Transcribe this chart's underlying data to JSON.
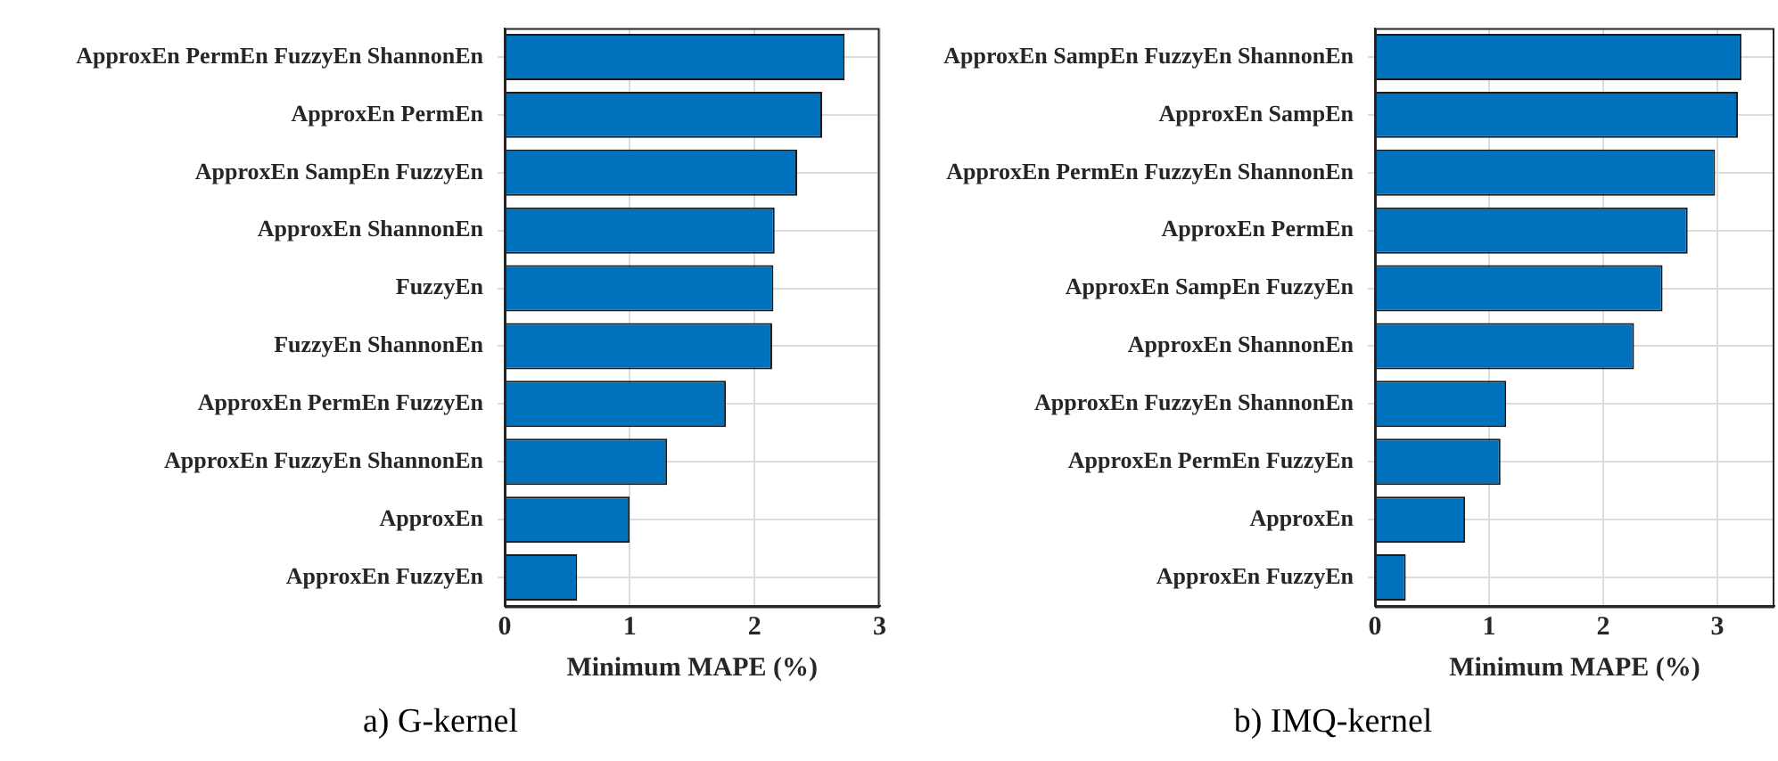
{
  "chart_data": [
    {
      "type": "bar",
      "orientation": "horizontal",
      "title": "a) G-kernel",
      "xlabel": "Minimum MAPE (%)",
      "categories": [
        "ApproxEn PermEn FuzzyEn ShannonEn",
        "ApproxEn PermEn",
        "ApproxEn SampEn FuzzyEn",
        "ApproxEn ShannonEn",
        "FuzzyEn",
        "FuzzyEn ShannonEn",
        "ApproxEn PermEn FuzzyEn",
        "ApproxEn FuzzyEn ShannonEn",
        "ApproxEn",
        "ApproxEn FuzzyEn"
      ],
      "values": [
        2.72,
        2.54,
        2.34,
        2.16,
        2.15,
        2.14,
        1.77,
        1.3,
        1.0,
        0.58
      ],
      "color": "#0072bd",
      "xlim": [
        0,
        3
      ],
      "xticks": [
        0,
        1,
        2,
        3
      ],
      "grid": true
    },
    {
      "type": "bar",
      "orientation": "horizontal",
      "title": "b) IMQ-kernel",
      "xlabel": "Minimum MAPE (%)",
      "categories": [
        "ApproxEn SampEn FuzzyEn ShannonEn",
        "ApproxEn SampEn",
        "ApproxEn PermEn FuzzyEn ShannonEn",
        "ApproxEn PermEn",
        "ApproxEn SampEn FuzzyEn",
        "ApproxEn ShannonEn",
        "ApproxEn FuzzyEn ShannonEn",
        "ApproxEn PermEn FuzzyEn",
        "ApproxEn",
        "ApproxEn FuzzyEn"
      ],
      "values": [
        3.21,
        3.18,
        2.98,
        2.74,
        2.52,
        2.27,
        1.15,
        1.1,
        0.79,
        0.27
      ],
      "color": "#0072bd",
      "xlim": [
        0,
        3.5
      ],
      "xticks": [
        0,
        1,
        2,
        3
      ],
      "grid": true
    }
  ]
}
